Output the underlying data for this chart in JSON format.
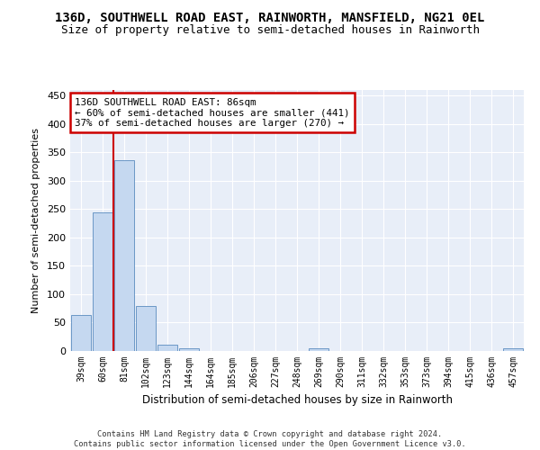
{
  "title": "136D, SOUTHWELL ROAD EAST, RAINWORTH, MANSFIELD, NG21 0EL",
  "subtitle": "Size of property relative to semi-detached houses in Rainworth",
  "xlabel": "Distribution of semi-detached houses by size in Rainworth",
  "ylabel": "Number of semi-detached properties",
  "categories": [
    "39sqm",
    "60sqm",
    "81sqm",
    "102sqm",
    "123sqm",
    "144sqm",
    "164sqm",
    "185sqm",
    "206sqm",
    "227sqm",
    "248sqm",
    "269sqm",
    "290sqm",
    "311sqm",
    "332sqm",
    "353sqm",
    "373sqm",
    "394sqm",
    "415sqm",
    "436sqm",
    "457sqm"
  ],
  "values": [
    63,
    244,
    336,
    80,
    11,
    5,
    0,
    0,
    0,
    0,
    0,
    5,
    0,
    0,
    0,
    0,
    0,
    0,
    0,
    0,
    4
  ],
  "bar_color": "#c5d8f0",
  "bar_edge_color": "#5a8bbf",
  "property_line_bin": 2,
  "property_line_color": "#cc0000",
  "annotation_text": "136D SOUTHWELL ROAD EAST: 86sqm\n← 60% of semi-detached houses are smaller (441)\n37% of semi-detached houses are larger (270) →",
  "annotation_box_color": "#cc0000",
  "ylim": [
    0,
    460
  ],
  "yticks": [
    0,
    50,
    100,
    150,
    200,
    250,
    300,
    350,
    400,
    450
  ],
  "background_color": "#e8eef8",
  "footer_text": "Contains HM Land Registry data © Crown copyright and database right 2024.\nContains public sector information licensed under the Open Government Licence v3.0.",
  "title_fontsize": 10,
  "subtitle_fontsize": 9
}
